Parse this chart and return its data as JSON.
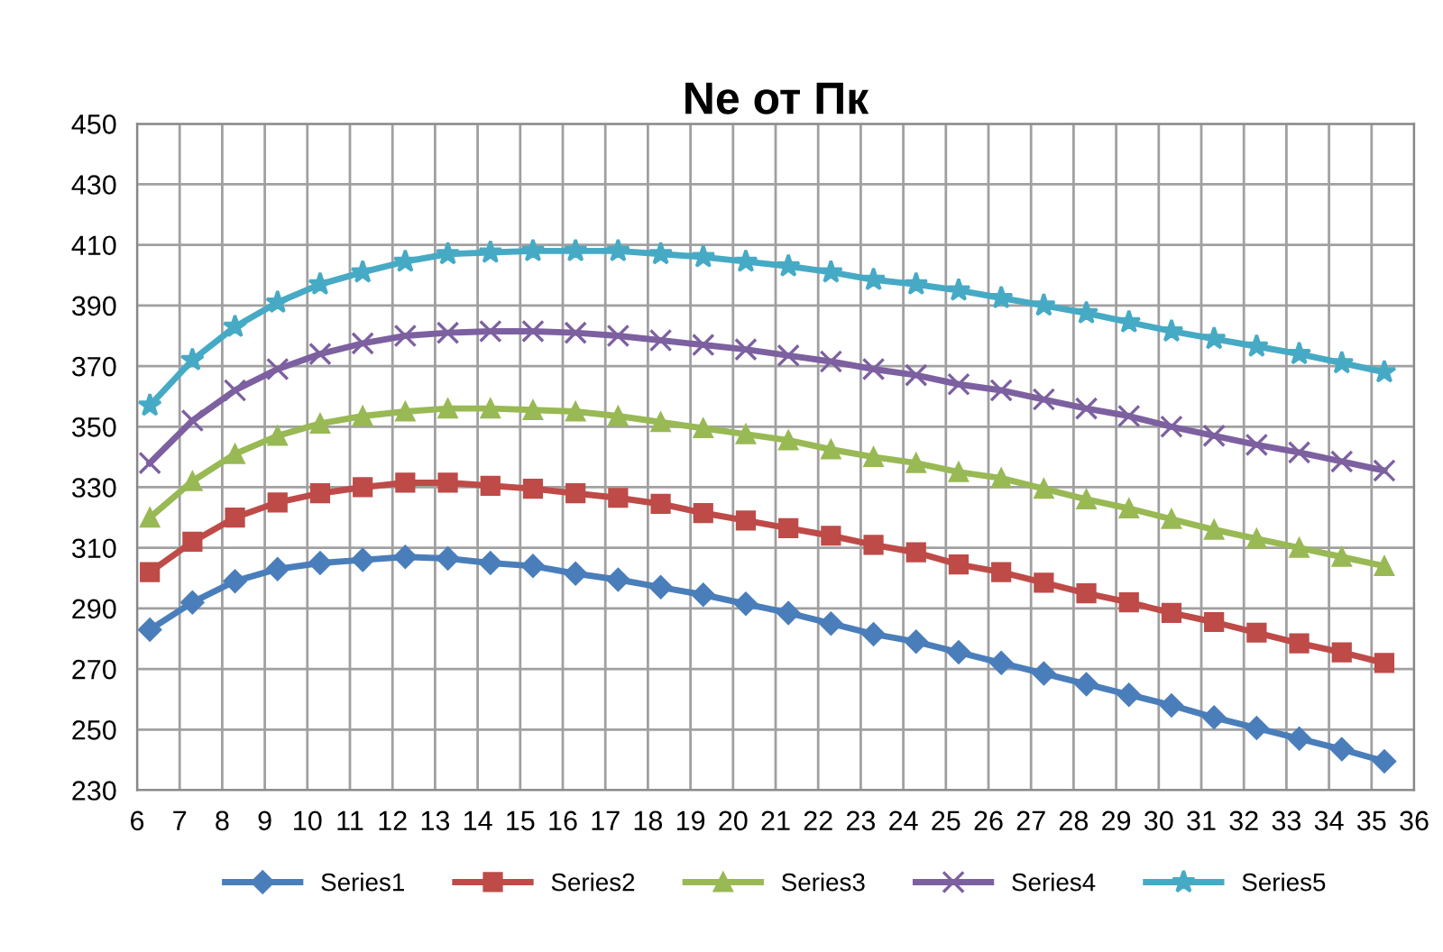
{
  "chart_data": {
    "type": "line",
    "title": "Ne от Пк",
    "x": [
      6.3,
      7.3,
      8.3,
      9.3,
      10.3,
      11.3,
      12.3,
      13.3,
      14.3,
      15.3,
      16.3,
      17.3,
      18.3,
      19.3,
      20.3,
      21.3,
      22.3,
      23.3,
      24.3,
      25.3,
      26.3,
      27.3,
      28.3,
      29.3,
      30.3,
      31.3,
      32.3,
      33.3,
      34.3,
      35.3
    ],
    "series": [
      {
        "name": "Series1",
        "color": "#4a7ebb",
        "marker": "diamond",
        "values": [
          283,
          292,
          299,
          303,
          305,
          306,
          307,
          306.5,
          305,
          304,
          301.5,
          299.5,
          297,
          294.5,
          291.5,
          288.5,
          285,
          281.5,
          279,
          275.5,
          272,
          268.5,
          265,
          261.5,
          258,
          254,
          250.5,
          247,
          243.5,
          239.5
        ]
      },
      {
        "name": "Series2",
        "color": "#be4b48",
        "marker": "square",
        "values": [
          302,
          312,
          320,
          325,
          328,
          330,
          331.5,
          331.5,
          330.5,
          329.5,
          328,
          326.5,
          324.5,
          321.5,
          319,
          316.5,
          314,
          311,
          308.5,
          304.5,
          302,
          298.5,
          295,
          292,
          288.5,
          285.5,
          282,
          278.5,
          275.5,
          272
        ]
      },
      {
        "name": "Series3",
        "color": "#98b954",
        "marker": "triangle",
        "values": [
          320,
          332,
          341,
          347,
          351,
          353.5,
          355,
          356,
          356,
          355.5,
          355,
          353.5,
          351.5,
          349.5,
          347.5,
          345.5,
          342.5,
          340,
          338,
          335,
          333,
          329.5,
          326,
          323,
          319.5,
          316,
          313,
          310,
          307,
          304
        ]
      },
      {
        "name": "Series4",
        "color": "#7d60a0",
        "marker": "cross",
        "values": [
          338,
          352,
          362,
          369,
          374,
          377.5,
          380,
          381,
          381.5,
          381.5,
          381,
          380,
          378.5,
          377,
          375.5,
          373.5,
          371.5,
          369,
          367,
          364,
          362,
          359,
          356,
          353.5,
          350,
          347,
          344,
          341.5,
          338.5,
          335.5
        ]
      },
      {
        "name": "Series5",
        "color": "#46aac5",
        "marker": "star",
        "values": [
          357,
          372,
          383,
          391,
          397,
          401,
          404.5,
          407,
          407.5,
          408,
          408,
          408,
          407,
          406,
          404.5,
          403,
          401,
          398.5,
          397,
          395,
          392.5,
          390,
          387.5,
          384.5,
          381.5,
          379,
          376.5,
          374,
          371,
          368
        ]
      }
    ],
    "xlim": [
      6,
      36
    ],
    "xticks": [
      6,
      7,
      8,
      9,
      10,
      11,
      12,
      13,
      14,
      15,
      16,
      17,
      18,
      19,
      20,
      21,
      22,
      23,
      24,
      25,
      26,
      27,
      28,
      29,
      30,
      31,
      32,
      33,
      34,
      35,
      36
    ],
    "ylim": [
      230,
      450
    ],
    "yticks": [
      230,
      250,
      270,
      290,
      310,
      330,
      350,
      370,
      390,
      410,
      430,
      450
    ],
    "grid": true,
    "legend": "bottom",
    "line_style": "solid"
  }
}
